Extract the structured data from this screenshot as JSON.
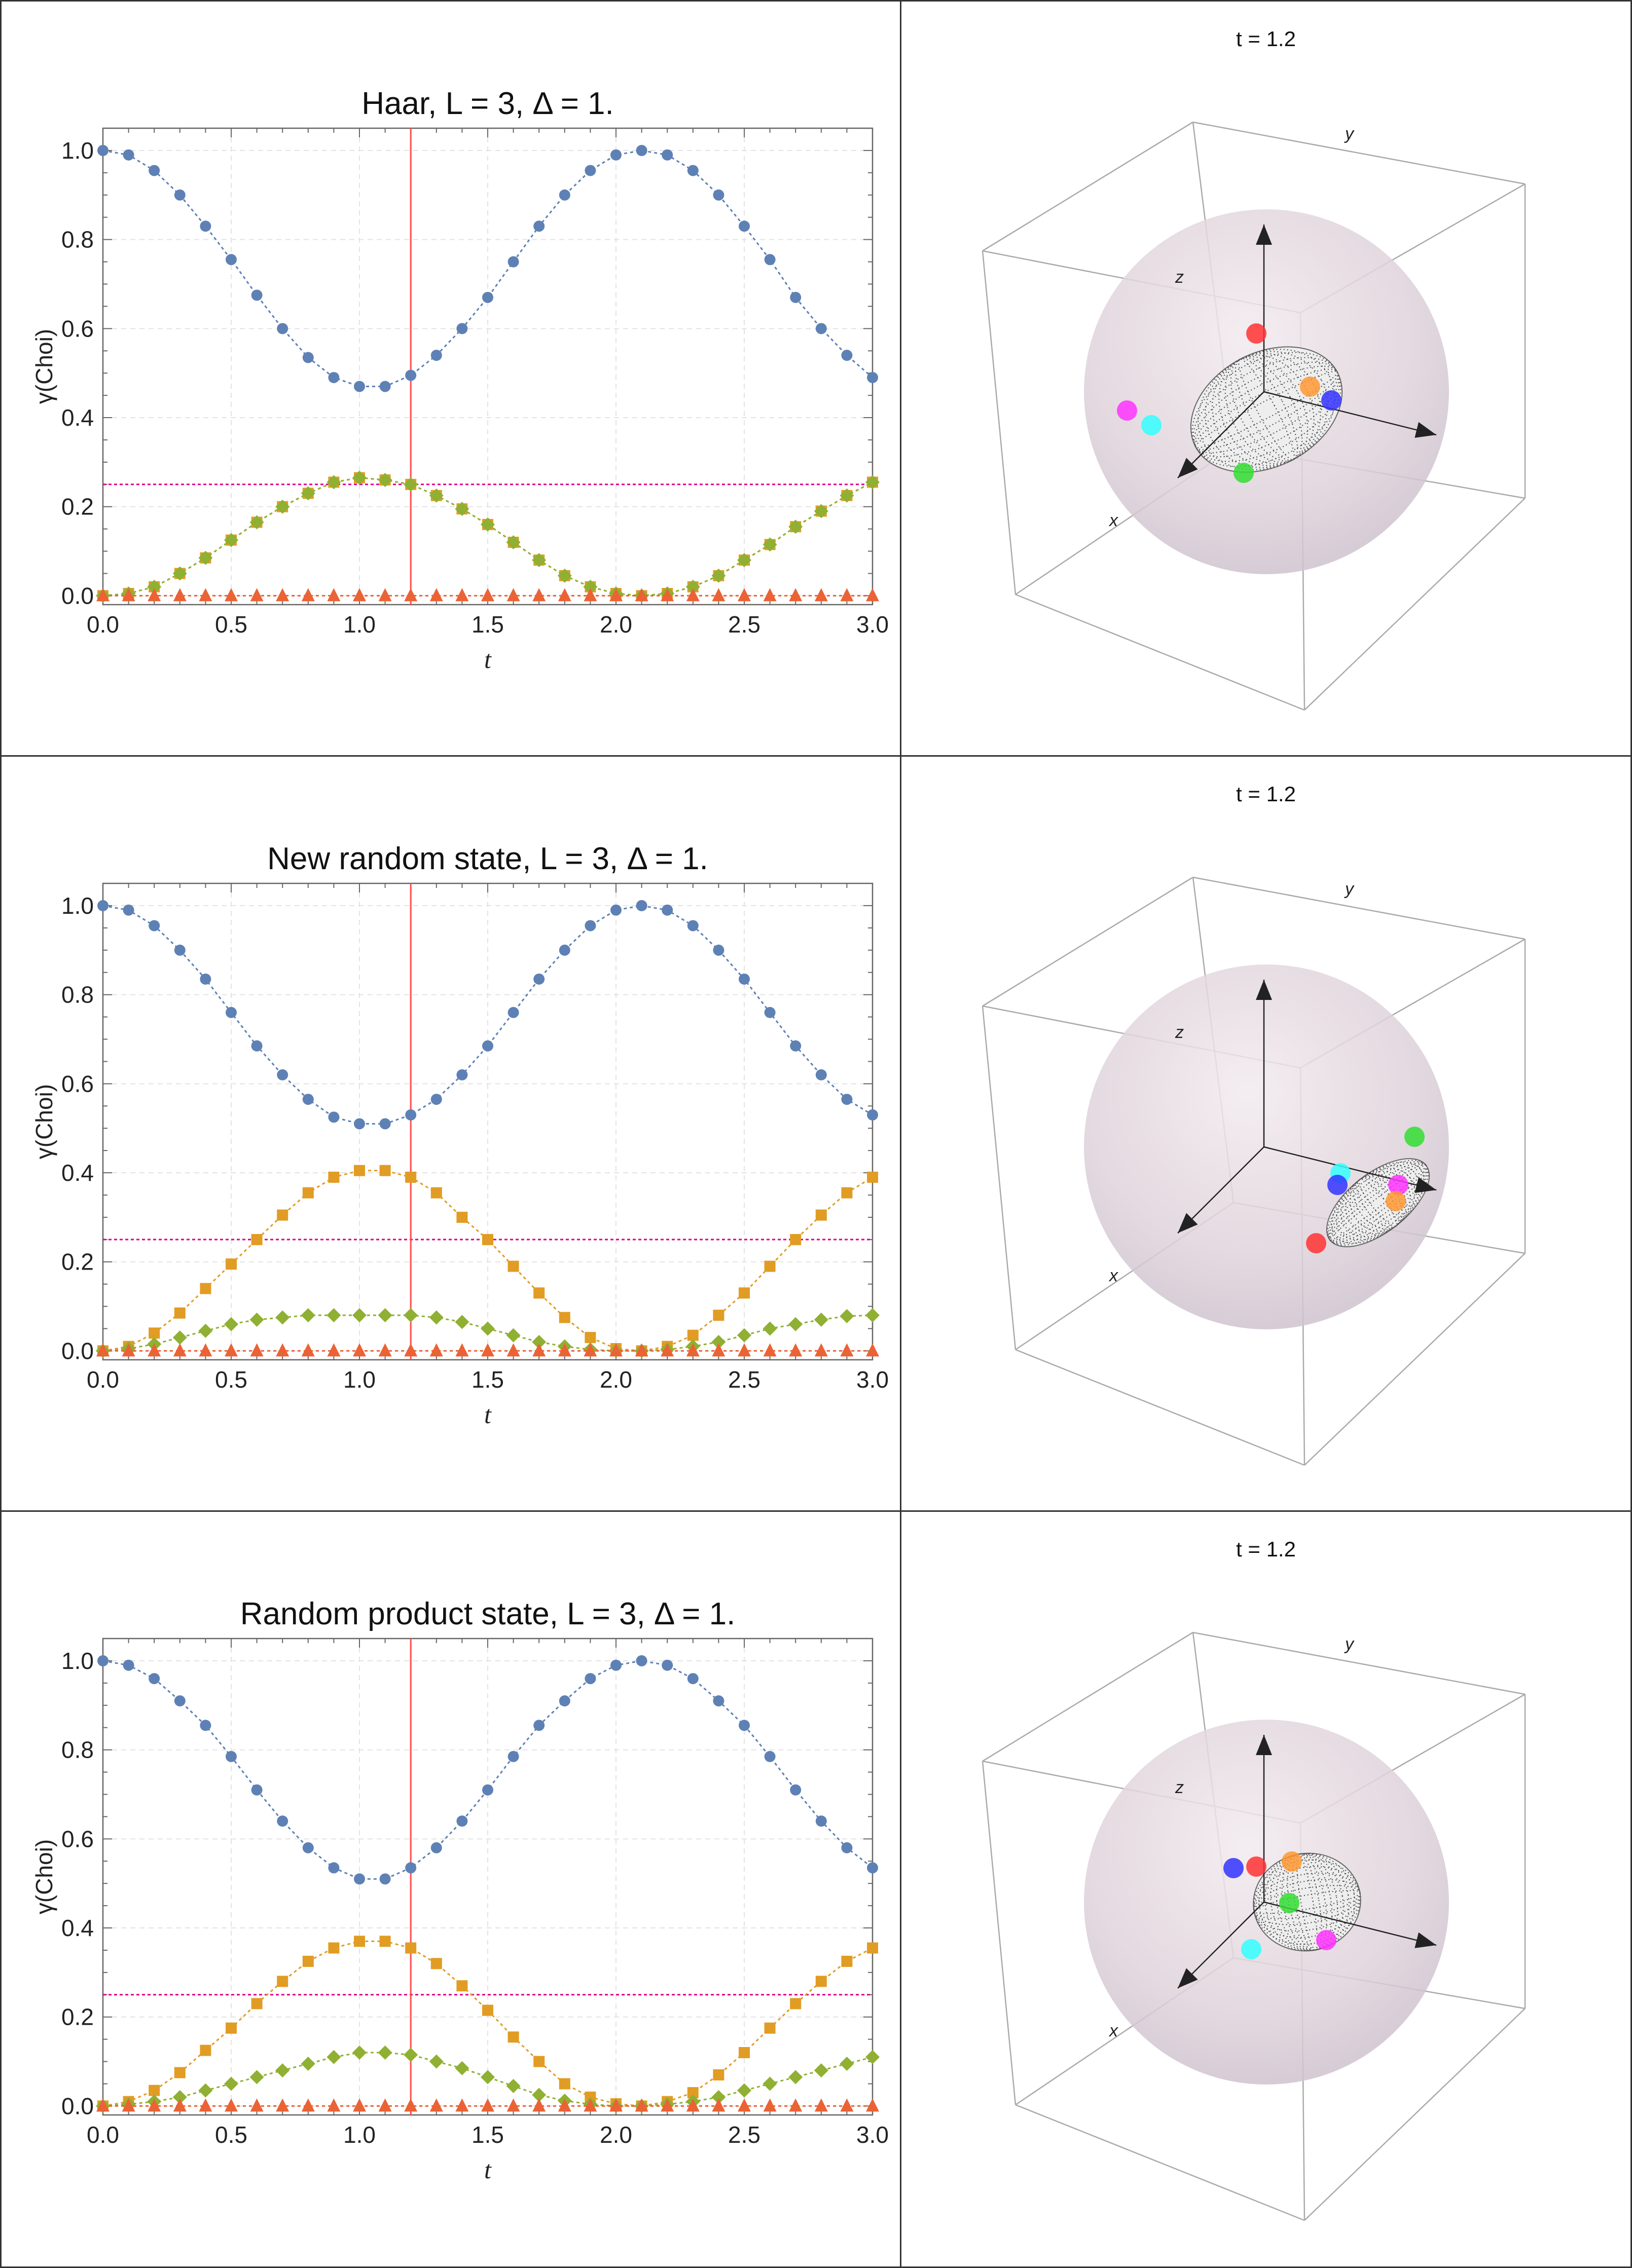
{
  "panels": [
    {
      "chart_data": {
        "type": "line",
        "title": "Haar, L = 3, Δ = 1.",
        "xlabel": "t",
        "ylabel": "γ(Choi)",
        "xlim": [
          0,
          3
        ],
        "ylim": [
          0,
          1.05
        ],
        "xticks": [
          "0.0",
          "0.5",
          "1.0",
          "1.5",
          "2.0",
          "2.5",
          "3.0"
        ],
        "yticks": [
          "0.0",
          "0.2",
          "0.4",
          "0.6",
          "0.8",
          "1.0"
        ],
        "grid": true,
        "marker_line_t": 1.2,
        "reference_line_y": 0.25,
        "x": [
          0,
          0.1,
          0.2,
          0.3,
          0.4,
          0.5,
          0.6,
          0.7,
          0.8,
          0.9,
          1.0,
          1.1,
          1.2,
          1.3,
          1.4,
          1.5,
          1.6,
          1.7,
          1.8,
          1.9,
          2.0,
          2.1,
          2.2,
          2.3,
          2.4,
          2.5,
          2.6,
          2.7,
          2.8,
          2.9,
          3.0
        ],
        "series": [
          {
            "marker": "circle",
            "color": "#5E81B5",
            "values": [
              1.0,
              0.99,
              0.955,
              0.9,
              0.83,
              0.755,
              0.675,
              0.6,
              0.535,
              0.49,
              0.47,
              0.47,
              0.495,
              0.54,
              0.6,
              0.67,
              0.75,
              0.83,
              0.9,
              0.955,
              0.99,
              1.0,
              0.99,
              0.955,
              0.9,
              0.83,
              0.755,
              0.67,
              0.6,
              0.54,
              0.49
            ]
          },
          {
            "marker": "square",
            "color": "#E19C24",
            "values": [
              0.0,
              0.005,
              0.02,
              0.05,
              0.085,
              0.125,
              0.165,
              0.2,
              0.23,
              0.255,
              0.265,
              0.26,
              0.25,
              0.225,
              0.195,
              0.16,
              0.12,
              0.08,
              0.045,
              0.02,
              0.005,
              0.0,
              0.005,
              0.02,
              0.045,
              0.08,
              0.115,
              0.155,
              0.19,
              0.225,
              0.255
            ]
          },
          {
            "marker": "diamond",
            "color": "#8FB032",
            "values": [
              0.0,
              0.005,
              0.02,
              0.05,
              0.085,
              0.125,
              0.165,
              0.2,
              0.23,
              0.255,
              0.265,
              0.26,
              0.25,
              0.225,
              0.195,
              0.16,
              0.12,
              0.08,
              0.045,
              0.02,
              0.005,
              0.0,
              0.005,
              0.02,
              0.045,
              0.08,
              0.115,
              0.155,
              0.19,
              0.225,
              0.255
            ]
          },
          {
            "marker": "triangle",
            "color": "#EB6235",
            "values": [
              0,
              0,
              0,
              0,
              0,
              0,
              0,
              0,
              0,
              0,
              0,
              0,
              0,
              0,
              0,
              0,
              0,
              0,
              0,
              0,
              0,
              0,
              0,
              0,
              0,
              0,
              0,
              0,
              0,
              0,
              0
            ]
          }
        ]
      },
      "bloch": {
        "title": "t = 1.2",
        "axis_labels": {
          "x": "x",
          "y": "y",
          "z": "z"
        },
        "points": [
          "#ff3333",
          "#ff9933",
          "#3333ff",
          "#ff33ff",
          "#33ffff",
          "#33dd33"
        ]
      }
    },
    {
      "chart_data": {
        "type": "line",
        "title": "New random state, L = 3, Δ = 1.",
        "xlabel": "t",
        "ylabel": "γ(Choi)",
        "xlim": [
          0,
          3
        ],
        "ylim": [
          0,
          1.05
        ],
        "xticks": [
          "0.0",
          "0.5",
          "1.0",
          "1.5",
          "2.0",
          "2.5",
          "3.0"
        ],
        "yticks": [
          "0.0",
          "0.2",
          "0.4",
          "0.6",
          "0.8",
          "1.0"
        ],
        "grid": true,
        "marker_line_t": 1.2,
        "reference_line_y": 0.25,
        "x": [
          0,
          0.1,
          0.2,
          0.3,
          0.4,
          0.5,
          0.6,
          0.7,
          0.8,
          0.9,
          1.0,
          1.1,
          1.2,
          1.3,
          1.4,
          1.5,
          1.6,
          1.7,
          1.8,
          1.9,
          2.0,
          2.1,
          2.2,
          2.3,
          2.4,
          2.5,
          2.6,
          2.7,
          2.8,
          2.9,
          3.0
        ],
        "series": [
          {
            "marker": "circle",
            "color": "#5E81B5",
            "values": [
              1.0,
              0.99,
              0.955,
              0.9,
              0.835,
              0.76,
              0.685,
              0.62,
              0.565,
              0.525,
              0.51,
              0.51,
              0.53,
              0.565,
              0.62,
              0.685,
              0.76,
              0.835,
              0.9,
              0.955,
              0.99,
              1.0,
              0.99,
              0.955,
              0.9,
              0.835,
              0.76,
              0.685,
              0.62,
              0.565,
              0.53
            ]
          },
          {
            "marker": "square",
            "color": "#E19C24",
            "values": [
              0.0,
              0.01,
              0.04,
              0.085,
              0.14,
              0.195,
              0.25,
              0.305,
              0.355,
              0.39,
              0.405,
              0.405,
              0.39,
              0.355,
              0.3,
              0.25,
              0.19,
              0.13,
              0.075,
              0.03,
              0.005,
              0.0,
              0.01,
              0.035,
              0.08,
              0.13,
              0.19,
              0.25,
              0.305,
              0.355,
              0.39
            ]
          },
          {
            "marker": "diamond",
            "color": "#8FB032",
            "values": [
              0.0,
              0.005,
              0.015,
              0.03,
              0.045,
              0.06,
              0.07,
              0.075,
              0.08,
              0.08,
              0.08,
              0.08,
              0.08,
              0.075,
              0.065,
              0.05,
              0.035,
              0.02,
              0.01,
              0.003,
              0.0,
              0.0,
              0.003,
              0.01,
              0.02,
              0.035,
              0.05,
              0.06,
              0.07,
              0.078,
              0.08
            ]
          },
          {
            "marker": "triangle",
            "color": "#EB6235",
            "values": [
              0,
              0,
              0,
              0,
              0,
              0,
              0,
              0,
              0,
              0,
              0,
              0,
              0,
              0,
              0,
              0,
              0,
              0,
              0,
              0,
              0,
              0,
              0,
              0,
              0,
              0,
              0,
              0,
              0,
              0,
              0
            ]
          }
        ]
      },
      "bloch": {
        "title": "t = 1.2",
        "axis_labels": {
          "x": "x",
          "y": "y",
          "z": "z"
        },
        "points": [
          "#33dd33",
          "#33ffff",
          "#3333ff",
          "#ff33ff",
          "#ff9933",
          "#ff3333"
        ]
      }
    },
    {
      "chart_data": {
        "type": "line",
        "title": "Random product state, L = 3, Δ = 1.",
        "xlabel": "t",
        "ylabel": "γ(Choi)",
        "xlim": [
          0,
          3
        ],
        "ylim": [
          0,
          1.05
        ],
        "xticks": [
          "0.0",
          "0.5",
          "1.0",
          "1.5",
          "2.0",
          "2.5",
          "3.0"
        ],
        "yticks": [
          "0.0",
          "0.2",
          "0.4",
          "0.6",
          "0.8",
          "1.0"
        ],
        "grid": true,
        "marker_line_t": 1.2,
        "reference_line_y": 0.25,
        "x": [
          0,
          0.1,
          0.2,
          0.3,
          0.4,
          0.5,
          0.6,
          0.7,
          0.8,
          0.9,
          1.0,
          1.1,
          1.2,
          1.3,
          1.4,
          1.5,
          1.6,
          1.7,
          1.8,
          1.9,
          2.0,
          2.1,
          2.2,
          2.3,
          2.4,
          2.5,
          2.6,
          2.7,
          2.8,
          2.9,
          3.0
        ],
        "series": [
          {
            "marker": "circle",
            "color": "#5E81B5",
            "values": [
              1.0,
              0.99,
              0.96,
              0.91,
              0.855,
              0.785,
              0.71,
              0.64,
              0.58,
              0.535,
              0.51,
              0.51,
              0.535,
              0.58,
              0.64,
              0.71,
              0.785,
              0.855,
              0.91,
              0.96,
              0.99,
              1.0,
              0.99,
              0.96,
              0.91,
              0.855,
              0.785,
              0.71,
              0.64,
              0.58,
              0.535
            ]
          },
          {
            "marker": "square",
            "color": "#E19C24",
            "values": [
              0.0,
              0.01,
              0.035,
              0.075,
              0.125,
              0.175,
              0.23,
              0.28,
              0.325,
              0.355,
              0.37,
              0.37,
              0.355,
              0.32,
              0.27,
              0.215,
              0.155,
              0.1,
              0.05,
              0.02,
              0.005,
              0.0,
              0.01,
              0.03,
              0.07,
              0.12,
              0.175,
              0.23,
              0.28,
              0.325,
              0.355
            ]
          },
          {
            "marker": "diamond",
            "color": "#8FB032",
            "values": [
              0.0,
              0.004,
              0.01,
              0.02,
              0.035,
              0.05,
              0.065,
              0.08,
              0.095,
              0.11,
              0.12,
              0.12,
              0.115,
              0.1,
              0.085,
              0.065,
              0.045,
              0.025,
              0.012,
              0.004,
              0.0,
              0.0,
              0.004,
              0.01,
              0.02,
              0.035,
              0.05,
              0.065,
              0.08,
              0.095,
              0.11
            ]
          },
          {
            "marker": "triangle",
            "color": "#EB6235",
            "values": [
              0,
              0,
              0,
              0,
              0,
              0,
              0,
              0,
              0,
              0,
              0,
              0,
              0,
              0,
              0,
              0,
              0,
              0,
              0,
              0,
              0,
              0,
              0,
              0,
              0,
              0,
              0,
              0,
              0,
              0,
              0
            ]
          }
        ]
      },
      "bloch": {
        "title": "t = 1.2",
        "axis_labels": {
          "x": "x",
          "y": "y",
          "z": "z"
        },
        "points": [
          "#ff9933",
          "#ff3333",
          "#3333ff",
          "#33dd33",
          "#ff33ff",
          "#33ffff"
        ]
      }
    }
  ],
  "colors": {
    "frame": "#333333",
    "axis": "#555555",
    "marker_line": "#FF4D4D",
    "reference_line": "#E0008B",
    "ellipsoid": "#555555"
  }
}
